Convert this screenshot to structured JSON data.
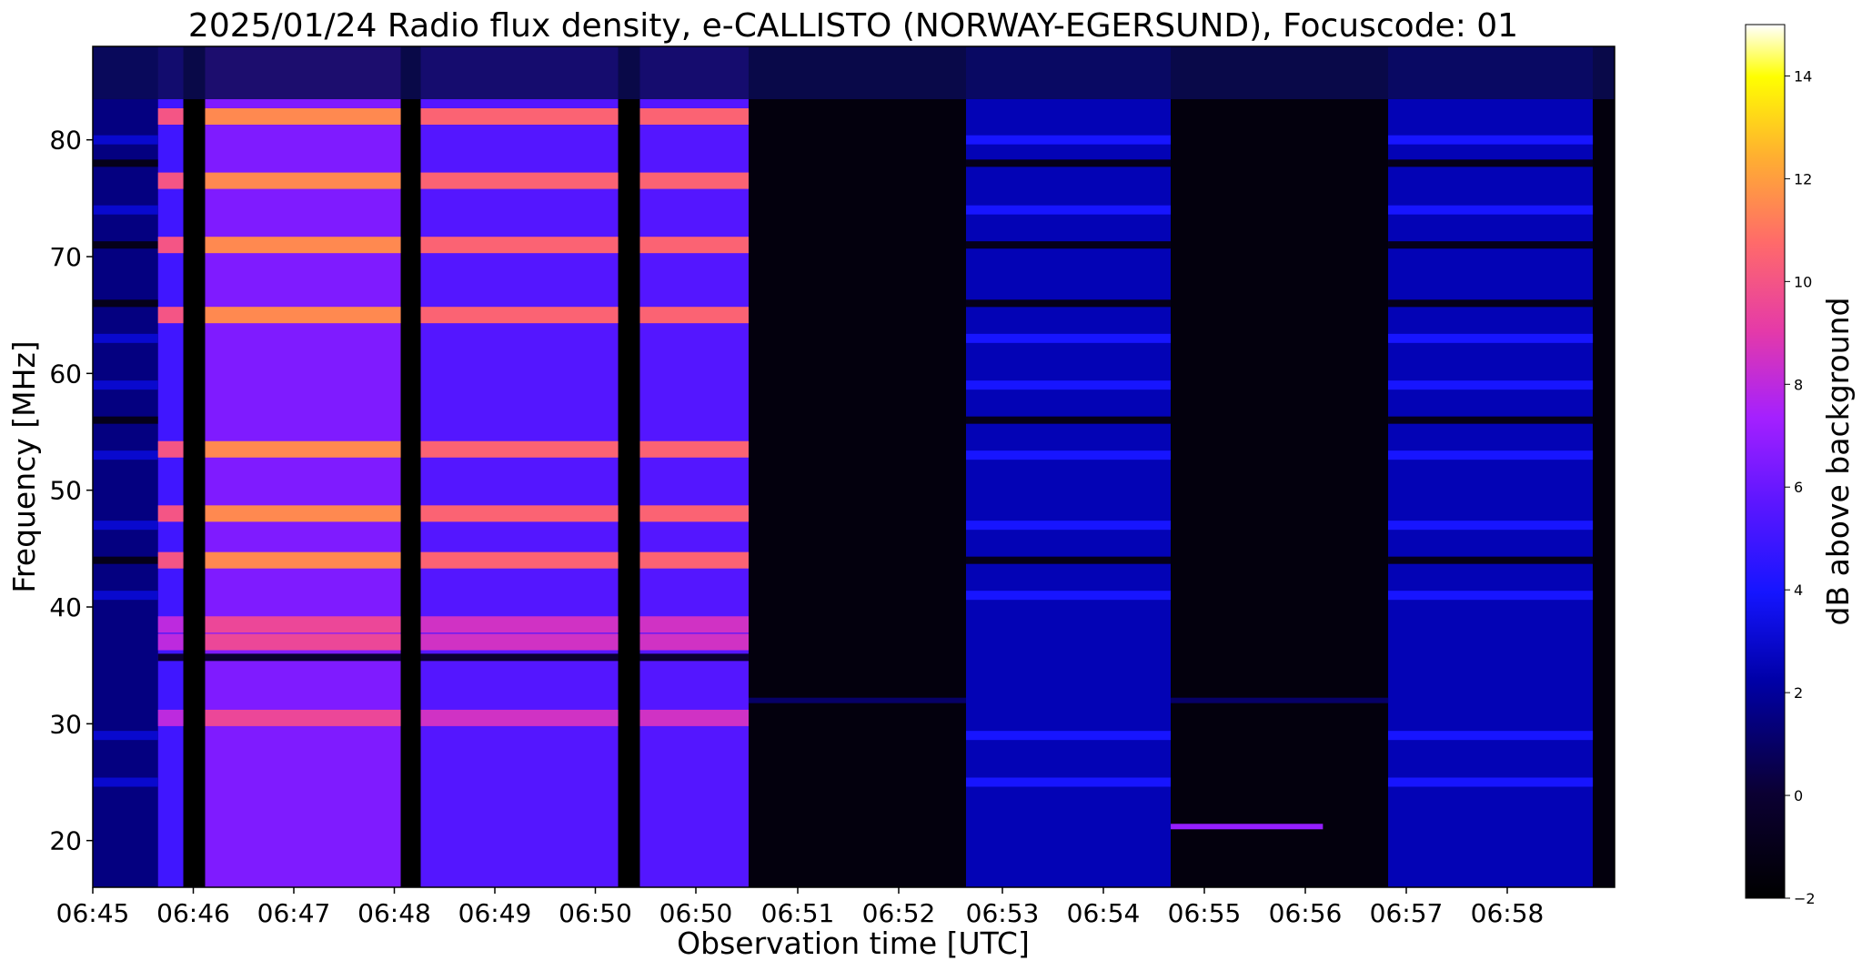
{
  "chart_data": {
    "type": "heatmap",
    "title": "2025/01/24  Radio flux density, e-CALLISTO (NORWAY-EGERSUND), Focuscode: 01",
    "xlabel": "Observation time [UTC]",
    "ylabel": "Frequency [MHz]",
    "colorbar_label": "dB above background",
    "colormap": "gnuplot2",
    "xlim": [
      "06:45:00",
      "06:59:00"
    ],
    "ylim": [
      16,
      88
    ],
    "clim": [
      -2,
      15
    ],
    "x_tick_labels": [
      "06:45",
      "06:46",
      "06:47",
      "06:48",
      "06:49",
      "06:50",
      "06:50",
      "06:51",
      "06:52",
      "06:53",
      "06:54",
      "06:55",
      "06:56",
      "06:57",
      "06:58"
    ],
    "y_ticks": [
      20,
      30,
      40,
      50,
      60,
      70,
      80
    ],
    "colorbar_ticks": [
      -2,
      0,
      2,
      4,
      6,
      8,
      10,
      12,
      14
    ],
    "bright_bands_mhz": [
      82,
      76.5,
      71,
      65,
      53.5,
      48,
      44,
      38.5,
      37,
      30.5
    ],
    "segments": [
      {
        "start": "06:45:00",
        "end": "06:45:36",
        "level_db": 1.5,
        "note": "partial coverage"
      },
      {
        "start": "06:45:36",
        "end": "06:45:50",
        "level_db": 5
      },
      {
        "start": "06:45:50",
        "end": "06:46:02",
        "level_db": -2,
        "note": "gap"
      },
      {
        "start": "06:46:02",
        "end": "06:47:50",
        "level_db": 6.5
      },
      {
        "start": "06:47:50",
        "end": "06:48:01",
        "level_db": -2,
        "note": "gap"
      },
      {
        "start": "06:48:01",
        "end": "06:49:50",
        "level_db": 5.5
      },
      {
        "start": "06:49:50",
        "end": "06:50:02",
        "level_db": -2,
        "note": "gap"
      },
      {
        "start": "06:50:02",
        "end": "06:51:02",
        "level_db": 5.5
      },
      {
        "start": "06:51:02",
        "end": "06:53:02",
        "level_db": -1.5,
        "note": "quiet"
      },
      {
        "start": "06:53:02",
        "end": "06:54:55",
        "level_db": 2.5
      },
      {
        "start": "06:54:55",
        "end": "06:56:55",
        "level_db": -1.5,
        "note": "quiet, line near 21 MHz"
      },
      {
        "start": "06:56:55",
        "end": "06:58:48",
        "level_db": 2.5
      },
      {
        "start": "06:58:48",
        "end": "06:59:00",
        "level_db": -1.5
      }
    ]
  }
}
